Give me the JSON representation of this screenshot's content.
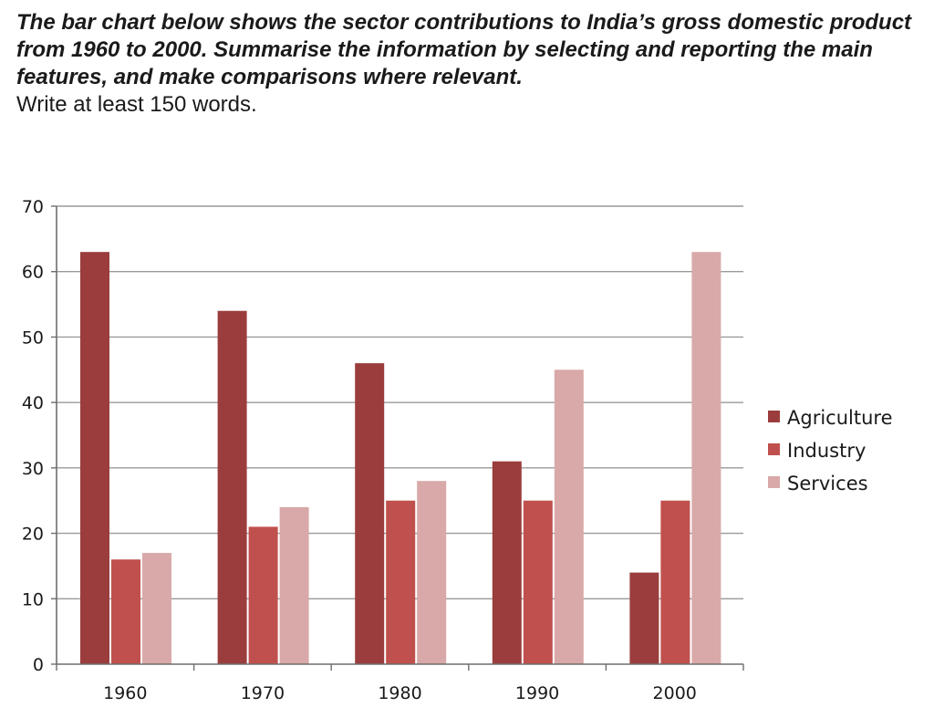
{
  "prompt": {
    "task": "The bar chart below shows the sector contributions to India’s gross domestic product from 1960 to 2000. Summarise the information by selecting and reporting the main features, and make comparisons where relevant.",
    "instruction": "Write at least 150 words."
  },
  "chart_data": {
    "type": "bar",
    "title": "",
    "xlabel": "",
    "ylabel": "",
    "categories": [
      "1960",
      "1970",
      "1980",
      "1990",
      "2000"
    ],
    "series": [
      {
        "name": "Agriculture",
        "values": [
          63,
          54,
          46,
          31,
          14
        ],
        "color": "#9b3d3d"
      },
      {
        "name": "Industry",
        "values": [
          16,
          21,
          25,
          25,
          25
        ],
        "color": "#c0504d"
      },
      {
        "name": "Services",
        "values": [
          17,
          24,
          28,
          45,
          63
        ],
        "color": "#d8a9a8"
      }
    ],
    "ylim": [
      0,
      70
    ],
    "yticks": [
      0,
      10,
      20,
      30,
      40,
      50,
      60,
      70
    ],
    "grid": true,
    "legend_position": "right"
  }
}
